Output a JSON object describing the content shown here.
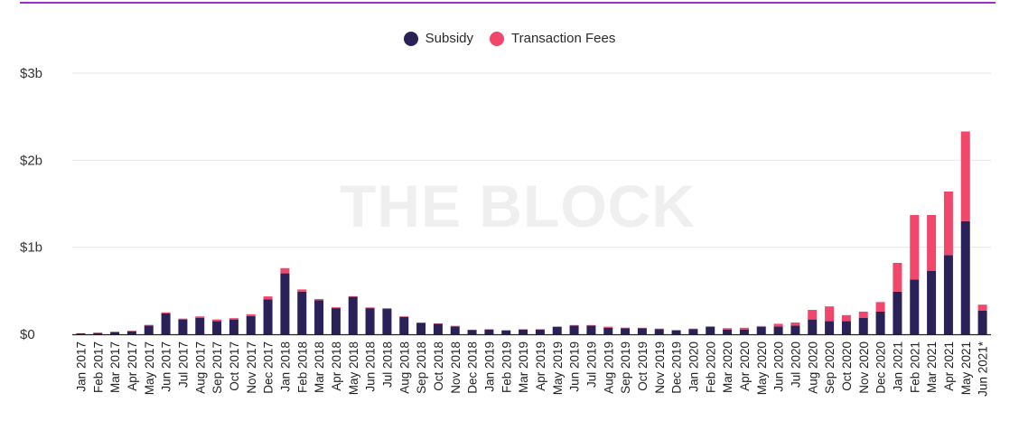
{
  "watermark": "THE BLOCK",
  "colors": {
    "subsidy": "#2a2158",
    "fees": "#f0476a",
    "grid": "#e6e6e6",
    "axis": "#222222",
    "top_rule": "#9b30c9"
  },
  "legend": [
    {
      "key": "subsidy",
      "label": "Subsidy"
    },
    {
      "key": "fees",
      "label": "Transaction Fees"
    }
  ],
  "chart_data": {
    "type": "bar",
    "stacked": true,
    "ylim": [
      0,
      3
    ],
    "yticks": [
      0,
      1,
      2,
      3
    ],
    "ytick_labels": [
      "$0",
      "$1b",
      "$2b",
      "$3b"
    ],
    "grid": true,
    "legend_position": "top-center",
    "categories": [
      "Jan 2017",
      "Feb 2017",
      "Mar 2017",
      "Apr 2017",
      "May 2017",
      "Jun 2017",
      "Jul 2017",
      "Aug 2017",
      "Sep 2017",
      "Oct 2017",
      "Nov 2017",
      "Dec 2017",
      "Jan 2018",
      "Feb 2018",
      "Mar 2018",
      "Apr 2018",
      "May 2018",
      "Jun 2018",
      "Jul 2018",
      "Aug 2018",
      "Sep 2018",
      "Oct 2018",
      "Nov 2018",
      "Dec 2018",
      "Jan 2019",
      "Feb 2019",
      "Mar 2019",
      "Apr 2019",
      "May 2019",
      "Jun 2019",
      "Jul 2019",
      "Aug 2019",
      "Sep 2019",
      "Oct 2019",
      "Nov 2019",
      "Dec 2019",
      "Jan 2020",
      "Feb 2020",
      "Mar 2020",
      "Apr 2020",
      "May 2020",
      "Jun 2020",
      "Jul 2020",
      "Aug 2020",
      "Sep 2020",
      "Oct 2020",
      "Nov 2020",
      "Dec 2020",
      "Jan 2021",
      "Feb 2021",
      "Mar 2021",
      "Apr 2021",
      "May 2021",
      "Jun 2021*"
    ],
    "series": [
      {
        "name": "Subsidy",
        "key": "subsidy",
        "values": [
          0.01,
          0.015,
          0.025,
          0.035,
          0.1,
          0.24,
          0.17,
          0.19,
          0.15,
          0.17,
          0.21,
          0.4,
          0.7,
          0.49,
          0.39,
          0.3,
          0.43,
          0.3,
          0.29,
          0.2,
          0.13,
          0.12,
          0.09,
          0.05,
          0.055,
          0.045,
          0.055,
          0.055,
          0.085,
          0.1,
          0.1,
          0.075,
          0.07,
          0.07,
          0.06,
          0.045,
          0.06,
          0.085,
          0.055,
          0.055,
          0.085,
          0.09,
          0.1,
          0.17,
          0.15,
          0.15,
          0.19,
          0.26,
          0.49,
          0.63,
          0.73,
          0.91,
          1.3,
          0.27
        ]
      },
      {
        "name": "Transaction Fees",
        "key": "fees",
        "values": [
          0.002,
          0.003,
          0.004,
          0.005,
          0.008,
          0.012,
          0.01,
          0.015,
          0.02,
          0.015,
          0.02,
          0.035,
          0.06,
          0.025,
          0.015,
          0.01,
          0.008,
          0.008,
          0.01,
          0.006,
          0.004,
          0.005,
          0.007,
          0.003,
          0.003,
          0.002,
          0.003,
          0.003,
          0.005,
          0.006,
          0.006,
          0.012,
          0.006,
          0.005,
          0.005,
          0.004,
          0.005,
          0.007,
          0.015,
          0.02,
          0.01,
          0.03,
          0.035,
          0.11,
          0.17,
          0.07,
          0.07,
          0.11,
          0.33,
          0.74,
          0.64,
          0.73,
          1.03,
          0.07
        ]
      }
    ]
  }
}
